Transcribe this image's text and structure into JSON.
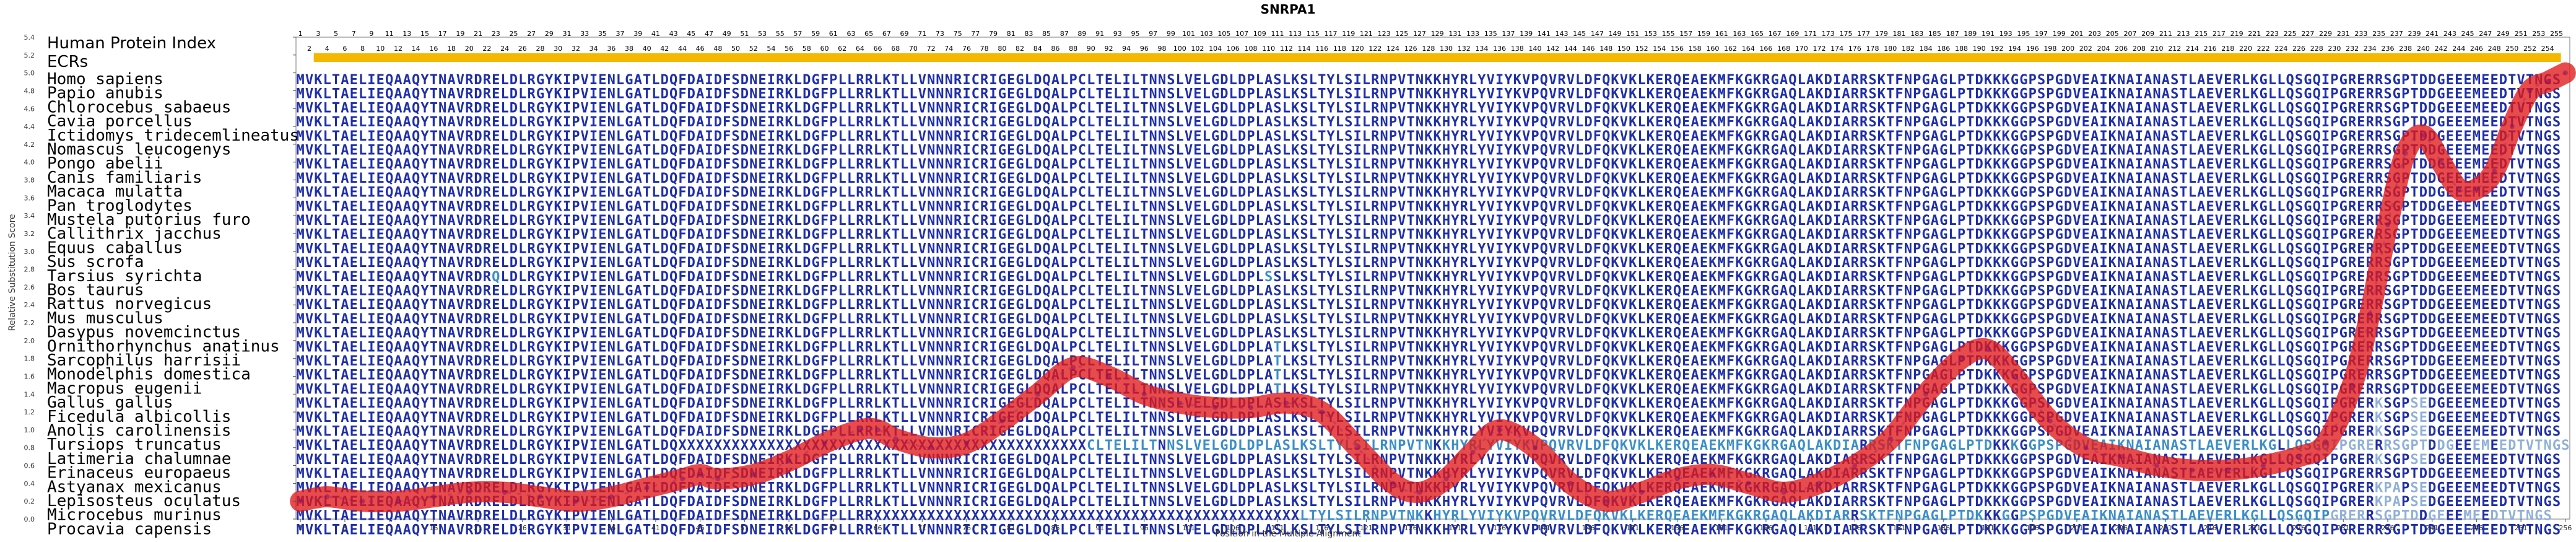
{
  "chart_data": {
    "type": "line",
    "title": "SNRPA1",
    "xlabel": "Position in the Multiple Alignment",
    "ylabel": "Relative Substitution Score",
    "xlim": [
      1,
      256
    ],
    "ylim": [
      0,
      5.4
    ],
    "y_ticks": [
      "0.0",
      "0.2",
      "0.4",
      "0.6",
      "0.8",
      "1.0",
      "1.2",
      "1.4",
      "1.6",
      "1.8",
      "2.0",
      "2.2",
      "2.4",
      "2.6",
      "2.8",
      "3.0",
      "3.2",
      "3.4",
      "3.6",
      "3.8",
      "4.0",
      "4.2",
      "4.4",
      "4.6",
      "4.8",
      "5.0",
      "5.2",
      "5.4"
    ],
    "x_ticks": [
      "1",
      "6",
      "11",
      "16",
      "21",
      "26",
      "31",
      "36",
      "41",
      "46",
      "51",
      "56",
      "61",
      "66",
      "71",
      "76",
      "81",
      "86",
      "91",
      "96",
      "101",
      "106",
      "111",
      "116",
      "121",
      "126",
      "131",
      "136",
      "141",
      "146",
      "151",
      "156",
      "161",
      "166",
      "171",
      "176",
      "181",
      "186",
      "191",
      "196",
      "201",
      "206",
      "211",
      "216",
      "221",
      "226",
      "231",
      "236",
      "241",
      "246",
      "251",
      "256"
    ],
    "header_labels": [
      "Human Protein Index",
      "ECRs"
    ],
    "species": [
      "Homo sapiens",
      "Papio anubis",
      "Chlorocebus sabaeus",
      "Cavia porcellus",
      "Ictidomys tridecemlineatus",
      "Nomascus leucogenys",
      "Pongo abelii",
      "Canis familiaris",
      "Macaca mulatta",
      "Pan troglodytes",
      "Mustela putorius furo",
      "Callithrix jacchus",
      "Equus caballus",
      "Sus scrofa",
      "Tarsius syrichta",
      "Bos taurus",
      "Rattus norvegicus",
      "Mus musculus",
      "Dasypus novemcinctus",
      "Ornithorhynchus anatinus",
      "Sarcophilus harrisii",
      "Monodelphis domestica",
      "Macropus eugenii",
      "Gallus gallus",
      "Ficedula albicollis",
      "Anolis carolinensis",
      "Tursiops truncatus",
      "Latimeria chalumnae",
      "Erinaceus europaeus",
      "Astyanax mexicanus",
      "Lepisosteus oculatus",
      "Microcebus murinus",
      "Procavia capensis"
    ],
    "sequences": [
      "MVKLTAELIEQAAQYTNAVRDRELDLRGYKIPVIENLGATLDQFDAIDFSDNEIRKLDGFPLLRRLKTLLVNNNRICRIGEGLDQALPCLTELILTNNSLVELGDLDPLASLKSLTYLSILRNPVTNKKHYRLYVIYKVPQVRVLDFQKVKLKERQEAEKMFKGKRGAQLAKDIARRSKTFNPGAGLPTDKKKGGPSPGDVEAIKNAIANASTLAEVERLKGLLQSGQIPGRERRSGPTDDGEEEMEEDTVTNGS",
      "MVKLTAELIEQAAQYTNAVRDRELDLRGYKIPVIENLGATLDQFDAIDFSDNEIRKLDGFPLLRRLKTLLVNNNRICRIGEGLDQALPCLTELILTNNSLVELGDLDPLASLKSLTYLSILRNPVTNKKHYRLYVIYKVPQVRVLDFQKVKLKERQEAEKMFKGKRGAQLAKDIARRSKTFNPGAGLPTDKKKGGPSPGDVEAIKNAIANASTLAEVERLKGLLQSGQIPGRERRSGPTDDGEEEMEEDTVTNGS",
      "MVKLTAELIEQAAQYTNAVRDRELDLRGYKIPVIENLGATLDQFDAIDFSDNEIRKLDGFPLLRRLKTLLVNNNRICRIGEGLDQALPCLTELILTNNSLVELGDLDPLASLKSLTYLSILRNPVTNKKHYRLYVIYKVPQVRVLDFQKVKLKERQEAEKMFKGKRGAQLAKDIARRSKTFNPGAGLPTDKKKGGPSPGDVEAIKNAIANASTLAEVERLKGLLQSGQIPGRERRSGPTDDGEEEMEEDTVTNGS",
      "MVKLTAELIEQAAQYTNAVRDRELDLRGYKIPVIENLGATLDQFDAIDFSDNEIRKLDGFPLLRRLKTLLVNNNRICRIGEGLDQALPCLTELILTNNSLVELGDLDPLASLKSLTYLSILRNPVTNKKHYRLYVIYKVPQVRVLDFQKVKLKERQEAEKMFKGKRGAQLAKDIARRSKTFNPGAGLPTDKKKGGPSPGDVEAIKNAIANASTLAEVERLKGLLQSGQIPGRERRSGPTDDGEEEMEEDTVTNGS",
      "MVKLTAELIEQAAQYTNAVRDRELDLRGYKIPVIENLGATLDQFDAIDFSDNEIRKLDGFPLLRRLKTLLVNNNRICRIGEGLDQALPCLTELILTNNSLVELGDLDPLASLKSLTYLSILRNPVTNKKHYRLYVIYKVPQVRVLDFQKVKLKERQEAEKMFKGKRGAQLAKDIARRSKTFNPGAGLPTDKKKGGPSPGDVEAIKNAIANASTLAEVERLKGLLQSGQIPGRERRSGPTDDGEEEMEEDTVTNGS",
      "MVKLTAELIEQAAQYTNAVRDRELDLRGYKIPVIENLGATLDQFDAIDFSDNEIRKLDGFPLLRRLKTLLVNNNRICRIGEGLDQALPCLTELILTNNSLVELGDLDPLASLKSLTYLSILRNPVTNKKHYRLYVIYKVPQVRVLDFQKVKLKERQEAEKMFKGKRGAQLAKDIARRSKTFNPGAGLPTDKKKGGPSPGDVEAIKNAIANASTLAEVERLKGLLQSGQIPGRERRSGPTDDGEEEMEEDTVTNGS",
      "MVKLTAELIEQAAQYTNAVRDRELDLRGYKIPVIENLGATLDQFDAIDFSDNEIRKLDGFPLLRRLKTLLVNNNRICRIGEGLDQALPCLTELILTNNSLVELGDLDPLASLKSLTYLSILRNPVTNKKHYRLYVIYKVPQVRVLDFQKVKLKERQEAEKMFKGKRGAQLAKDIARRSKTFNPGAGLPTDKKKGGPSPGDVEAIKNAIANASTLAEVERLKGLLQSGQIPGRERRSGPTDDGEEEMEEDTVTNGS",
      "MVKLTAELIEQAAQYTNAVRDRELDLRGYKIPVIENLGATLDQFDAIDFSDNEIRKLDGFPLLRRLKTLLVNNNRICRIGEGLDQALPCLTELILTNNSLVELGDLDPLASLKSLTYLSILRNPVTNKKHYRLYVIYKVPQVRVLDFQKVKLKERQEAEKMFKGKRGAQLAKDIARRSKTFNPGAGLPTDKKKGGPSPGDVEAIKNAIANASTLAEVERLKGLLQSGQIPGRERRSGPTDDGEEEMEEDTVTNGS",
      "MVKLTAELIEQAAQYTNAVRDRELDLRGYKIPVIENLGATLDQFDAIDFSDNEIRKLDGFPLLRRLKTLLVNNNRICRIGEGLDQALPCLTELILTNNSLVELGDLDPLASLKSLTYLSILRNPVTNKKHYRLYVIYKVPQVRVLDFQKVKLKERQEAEKMFKGKRGAQLAKDIARRSKTFNPGAGLPTDKKKGGPSPGDVEAIKNAIANASTLAEVERLKGLLQSGQIPGRERRSGPTDDGEEEMEEDTVTNGS",
      "MVKLTAELIEQAAQYTNAVRDRELDLRGYKIPVIENLGATLDQFDAIDFSDNEIRKLDGFPLLRRLKTLLVNNNRICRIGEGLDQALPCLTELILTNNSLVELGDLDPLASLKSLTYLSILRNPVTNKKHYRLYVIYKVPQVRVLDFQKVKLKERQEAEKMFKGKRGAQLAKDIARRSKTFNPGAGLPTDKKKGGPSPGDVEAIKNAIANASTLAEVERLKGLLQSGQIPGRERRSGPTDDGEEEMEEDTVTNGS",
      "MVKLTAELIEQAAQYTNAVRDRELDLRGYKIPVIENLGATLDQFDAIDFSDNEIRKLDGFPLLRRLKTLLVNNNRICRIGEGLDQALPCLTELILTNNSLVELGDLDPLASLKSLTYLSILRNPVTNKKHYRLYVIYKVPQVRVLDFQKVKLKERQEAEKMFKGKRGAQLAKDIARRSKTFNPGAGLPTDKKKGGPSPGDVEAIKNAIANASTLAEVERLKGLLQSGQIPGRERRSGPTDDGEEEMEEDTVTNGS",
      "MVKLTAELIEQAAQYTNAVRDRELDLRGYKIPVIENLGATLDQFDAIDFSDNEIRKLDGFPLLRRLKTLLVNNNRICRIGEGLDQALPCLTELILTNNSLVELGDLDPLASLKSLTYLSILRNPVTNKKHYRLYVIYKVPQVRVLDFQKVKLKERQEAEKMFKGKRGAQLAKDIARRSKTFNPGAGLPTDKKKGGPSPGDVEAIKNAIANASTLAEVERLKGLLQSGQIPGRERRSGPTDDGEEEMEEDTVTNGS",
      "MVKLTAELIEQAAQYTNAVRDRELDLRGYKIPVIENLGATLDQFDAIDFSDNEIRKLDGFPLLRRLKTLLVNNNRICRIGEGLDQALPCLTELILTNNSLVELGDLDPLASLKSLTYLSILRNPVTNKKHYRLYVIYKVPQVRVLDFQKVKLKERQEAEKMFKGKRGAQLAKDIARRSKTFNPGAGLPTDKKKGGPSPGDVEAIKNAIANASTLAEVERLKGLLQSGQIPGRERRSGPTDDGEEEMEEDTVTNGS",
      "MVKLTAELIEQAAQYTNAVRDRELDLRGYKIPVIENLGATLDQFDAIDFSDNEIRKLDGFPLLRRLKTLLVNNNRICRIGEGLDQALPCLTELILTNNSLVELGDLDPLASLKSLTYLSILRNPVTNKKHYRLYVIYKVPQVRVLDFQKVKLKERQEAEKMFKGKRGAQLAKDIARRSKTFNPGAGLPTDKKKGGPSPGDVEAIKNAIANASTLAEVERLKGLLQSGQIPGRERRSGPTDDGEEEMEEDTVTNGS",
      "MVKLTAELIEQAAQYTNAVRDRQLDLRGYKIPVIENLGATLDQFDAIDFSDNEIRKLDGFPLLRRLKTLLVNNNRICRIGEGLDQALPCLTELILTNNSLVELGDLDPLSSLKSLTYLSILRNPVTNKKHYRLYVIYKVPQVRVLDFQKVKLKERQEAEKMFKGKRGAQLAKDIARRSKTFNPGAGLPTDKKKGGPSPGDVEAIKNAIANASTLAEVERLKGLLQSGQIPGRERRSGPTDDGEEEMEEDTVTNGS",
      "MVKLTAELIEQAAQYTNAVRDRELDLRGYKIPVIENLGATLDQFDAIDFSDNEIRKLDGFPLLRRLKTLLVNNNRICRIGEGLDQALPCLTELILTNNSLVELGDLDPLASLKSLTYLSILRNPVTNKKHYRLYVIYKVPQVRVLDFQKVKLKERQEAEKMFKGKRGAQLAKDIARRSKTFNPGAGLPTDKKKGGPSPGDVEAIKNAIANASTLAEVERLKGLLQSGQIPGRERRSGPTDDGEEEMEEDTVTNGS",
      "MVKLTAELIEQAAQYTNAVRDRELDLRGYKIPVIENLGATLDQFDAIDFSDNEIRKLDGFPLLRRLKTLLVNNNRICRIGEGLDQALPCLTELILTNNSLVELGDLDPLASLKSLTYLSILRNPVTNKKHYRLYVIYKVPQVRVLDFQKVKLKERQEAEKMFKGKRGAQLAKDIARRSKTFNPGAGLPTDKKKGGPSPGDVEAIKNAIANASTLAEVERLKGLLQSGQIPGRERRSGPTDDGEEEMEEDTVTNGS",
      "MVKLTAELIEQAAQYTNAVRDRELDLRGYKIPVIENLGATLDQFDAIDFSDNEIRKLDGFPLLRRLKTLLVNNNRICRIGEGLDQALPCLTELILTNNSLVELGDLDPLASLKSLTYLSILRNPVTNKKHYRLYVIYKVPQVRVLDFQKVKLKERQEAEKMFKGKRGAQLAKDIARRSKTFNPGAGLPTDKKKGGPSPGDVEAIKNAIANASTLAEVERLKGLLQSGQIPGRERRSGPTDDGEEEMEEDTVTNGS",
      "MVKLTAELIEQAAQYTNAVRDRELDLRGYKIPVIENLGATLDQFDAIDFSDNEIRKLDGFPLLRRLKTLLVNNNRICRIGEGLDQALPCLTELILTNNSLVELGDLDPLASLKSLTYLSILRNPVTNKKHYRLYVIYKVPQVRVLDFQKVKLKERQEAEKMFKGKRGAQLAKDIARRSKTFNPGAGLPTDKKKGGPSPGDVEAIKNAIANASTLAEVERLKGLLQSGQIPGRERRSGPTDDGEEEMEEDTVTNGS",
      "MVKLTAELIEQAAQYTNAVRDRELDLRGYKIPVIENLGATLDQFDAIDFSDNEIRKLDGFPLLRRLKTLLVNNNRICRIGEGLDQALPCLTELILTNNSLVELGDLDPLATLKSLTYLSILRNPVTNKKHYRLYVIYKVPQVRVLDFQKVKLKERQEAEKMFKGKRGAQLAKDIARRSKTFNPGAGLPTDKKKGGPSPGDVEAIKNAIANASTLAEVERLKGLLQSGQIPGRERRSGPTDDGEEEMEEDTVTNGS",
      "MVKLTAELIEQAAQYTNAVRDRELDLRGYKIPVIENLGATLDQFDAIDFSDNEIRKLDGFPLLRRLKTLLVNNNRICRIGEGLDQALPCLTELILTNNSLVELGDLDPLATLKSLTYLSILRNPVTNKKHYRLYVIYKVPQVRVLDFQKVKLKERQEAEKMFKGKRGAQLAKDIARRSKTFNPGAGLPTDKKKGGPSPGDVEAIKNAIANASTLAEVERLKGLLQSGQIPGRERRSGPTDDGEEEMEEDTVTNGS",
      "MVKLTAELIEQAAQYTNAVRDRELDLRGYKIPVIENLGATLDQFDAIDFSDNEIRKLDGFPLLRRLKTLLVNNNRICRIGEGLDQALPCLTELILTNNSLVELGDLDPLATLKSLTYLSILRNPVTNKKHYRLYVIYKVPQVRVLDFQKVKLKERQEAEKMFKGKRGAQLAKDIARRSKTFNPGAGLPTDKKKGGPSPGDVEAIKNAIANASTLAEVERLKGLLQSGQIPGRERRSGPTDDGEEEMEEDTVTNGS",
      "MVKLTAELIEQAAQYTNAVRDRELDLRGYKIPVIENLGATLDQFDAIDFSDNEIRKLDGFPLLRRLKTLLVNNNRICRIGEGLDQALPCLTELILTNNSLVELGDLDPLATLKSLTYLSILRNPVTNKKHYRLYVIYKVPQVRVLDFQKVKLKERQEAEKMFKGKRGAQLAKDIARRSKTFNPGAGLPTDKKKGGPSPGDVEAIKNAIANASTLAEVERLKGLLQSGQIPGRERRSGPTDDGEEEMEEDTVTNGS",
      "MVKLTAELIEQAAQYTNAVRDRELDLRGYKIPVIENLGATLDQFDAIDFSDNEIRKLDGFPLLRRLKTLLVNNNRICRIGEGLDQALPCLTELILTNNSLVELGDLDPLASLKSLTYLSILRNPVTNKKHYRLYVIYKVPQVRVLDFQKVKLKERQEAEKMFKGKRGAQLAKDIARRSKTFNPGAGLPTDKKKGGPSPGDVEAIKNAIANASTLAEVERLKGLLQSGQIPGRERKSGPSEDGEEEMEEDTVTNGS",
      "MVKLTAELIEQAAQYTNAVRDRELDLRGYKIPVIENLGATLDQFDAIDFSDNEIRKLDGFPLLRRLKTLLVNNNRICRIGEGLDQALPCLTELILTNNSLVELGDLDPLASLKSLTYLSILRNPVTNKKHYRLYVIYKVPQVRVLDFQKVKLKERQEAEKMFKGKRGAQLAKDIARRSKTFNPGAGLPTDKKKGGPSPGDVEAIKNAIANASTLAEVERLKGLLQSGQIPGRERKSGPSEDGEEEMEEDTVTNGS",
      "MVKLTAELIEQAAQYTNAVRDRELDLRGYKIPVIENLGATLDQFDAIDFSDNEIRKLDGFPLLRRLKTLLVNNNRICRIGEGLDQALPCLTELILTNNSLVELGDLDPLASLKSLTYLSILRNPVTNKKHYRLYVIYKVPQVRVLDFQKVKLKERQEAEKMFKGKRGAQLAKDIARRSKTFNPGAGLPTDKKKGGPSPGDVEAIKNAIANASTLAEVERLKGLLQSGQIPGRERKSGPSEDGEEEMEEDTVTNGS",
      "MVKLTAELIEQAAQYTNAVRDRELDLRGYKIPVIENLGATLDQXXXXXXXXXXXXXXXXXXXXXXXXXXXXXXXXXXXXXXXXXXXXXXCLTELILTNNSLVELGDLDPLASLKSLTYLSILRNPVTNKKHYRLYVIYKVPQVRVLDFQKVKLKERQEAEKMFKGKRGAQLAKDIARRSKTFNPGAGLPTDKKKGGPSPGDVEAIKNAIANASTLAEVERLKGLLQSGQIPGRERRSGPTDDGEEEMEEDTVTNGS",
      "MVKLTAELIEQAAQYTNAVRDRELDLRGYKIPVIENLGATLDQFDAIDFSDNEIRKLDGFPLLRRLKTLLVNNNRICRIGEGLDQALPCLTELILTNNSLVELGDLDPLASLKSLTYLSILRNPVTNKKHYRLYVIYKVPQVRVLDFQKVKLKERQEAEKMFKGKRGAQLAKDIARRSKTFNPGAGLPTDKKKGGPSPGDVEAIKNAIANASTLAEVERLKGLLQSGQIPGRERKSGPSEDGEEEMEEDTVTNGS",
      "MVKLTAELIEQAAQYTNAVRDRELDLRGYKIPVIENLGATLDQFDAIDFSDNEIRKLDGFPLLRRLKTLLVNNNRICRIGEGLDQALPCLTELILTNNSLVELGDLDPLASLKSLTYLSILRNPVTNKKHYRLYVIYKVPQVRVLDFQKVKLKERQEAEKMFKGKRGAQLAKDIARRSKTFNPGAGLPTDKKKGGPSPGDVEAIKNAIANASTLAEVERLKGLLQSGQIPGRERRSGPTDDGEEEMEEDTVTNGS",
      "MVKLTAELIEQAAQYTNAVRDRELDLRGYKIPVIENLGATLDQFDAIDFSDNEIRKLDGFPLLRRLKTLLVNNNRICRIGEGLDQALPCLTELILTNNSLVELGDLDPLASLKSLTYLSILRNPVTNKKHYRLYVIYKVPQVRVLDFQKVKLKERQEAEKMFKGKRGAQLAKDIARRSKTFNPGAGLPTDKKKGGPSPGDVEAIKNAIANASTLAEVERLKGLLQSGQIPGRERKPAPSEDGEEEMEEDTVTNGS",
      "MVKLTAELIEQAAQYTNAVRDRELDLRGYKIPVIENLGATLDQFDAIDFSDNEIRKLDGFPLLRRLKTLLVNNNRICRIGEGLDQALPCLTELILTNNSLVELGDLDPLASLKSLTYLSILRNPVTNKKHYRLYVIYKVPQVRVLDFQKVKLKERQEAEKMFKGKRGAQLAKDIARRSKTFNPGAGLPTDKKKGGPSPGDVEAIKNAIANASTLAEVERLKGLLQSGQIPGRERKPAPSEDGEEEMEEDTVTNGS",
      "MVKLTAELIEQAAQYTNAVRDRELDLRGYKIPVIENLGATLDQFDAIDFSDNEIRKLDGFPLLRRXXXXXXXXXXXXXXXXXXXXXXXXXXXXXXXXXXXXXXXXXXXXXXXXLTYLSILRNPVTNKKHYRLYVIYKVPQVRVLDFQKVKLKERQEAEKMFKGKRGAQLAKDIARRSKTFNPGAGLPTDKKKGGPSPGDVEAIKNAIANASTLAEVERLKGLLQSGQIPGRERRSGPTDDGEEEMEEDTVTNGS",
      "MVKLTAELIEQAAQYTNAVRDRELDLRGYKIPVIENLGATLDQFDAIDFSDNEIRKLDGFPLLRRLKTLLVNNNRICRIGEGLDQALPCLTELILTNNSLVELGDLDPLASLKSLTYLSILRNPVTNKKHYRLYVIYKVPQVRVLDFQKVKLKERQEAEKMFKGKRGAQLAKDIARRSKTFNPGAGLPTDKKKGGPSPGDVEAIKNAIANASTLAEVERLKGLLQSGQIPGRERRSGPTDDGEEEMEEDTVTNGS"
    ],
    "series": [
      {
        "x": [
          1,
          4,
          8,
          12,
          16,
          20,
          24,
          28,
          32,
          36,
          40,
          44,
          46,
          48,
          52,
          56,
          60,
          64,
          66,
          68,
          72,
          76,
          80,
          84,
          88,
          92,
          96,
          100,
          104,
          108,
          112,
          116,
          120,
          124,
          127,
          130,
          133,
          136,
          140,
          144,
          148,
          152,
          156,
          160,
          164,
          168,
          172,
          176,
          180,
          184,
          188,
          191,
          194,
          198,
          202,
          206,
          210,
          214,
          218,
          222,
          226,
          229,
          232,
          234,
          236,
          238,
          240,
          242,
          244,
          246,
          248,
          250,
          252,
          254,
          256
        ],
        "y": [
          0.2,
          0.25,
          0.2,
          0.2,
          0.25,
          0.3,
          0.3,
          0.25,
          0.2,
          0.25,
          0.35,
          0.45,
          0.5,
          0.45,
          0.5,
          0.65,
          0.85,
          1.0,
          1.0,
          0.9,
          0.8,
          0.85,
          1.1,
          1.4,
          1.7,
          1.6,
          1.4,
          1.3,
          1.25,
          1.25,
          1.3,
          1.2,
          0.8,
          0.4,
          0.3,
          0.45,
          0.75,
          1.0,
          0.8,
          0.4,
          0.2,
          0.3,
          0.45,
          0.5,
          0.4,
          0.3,
          0.4,
          0.6,
          0.9,
          1.4,
          1.8,
          1.9,
          1.6,
          1.1,
          0.8,
          0.7,
          0.6,
          0.55,
          0.55,
          0.6,
          0.7,
          0.85,
          1.5,
          2.3,
          3.3,
          4.1,
          4.3,
          4.0,
          3.7,
          3.7,
          3.9,
          4.4,
          4.8,
          4.9,
          5.0
        ]
      }
    ],
    "grid": false
  }
}
